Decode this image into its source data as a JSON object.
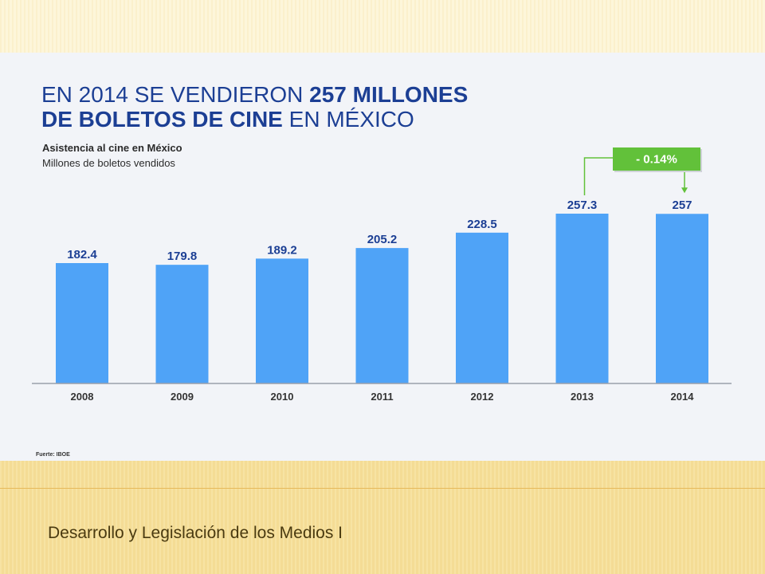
{
  "headline": {
    "line1_regular": "EN 2014 SE VENDIERON ",
    "line1_bold": "257 MILLONES",
    "line2_bold": "DE BOLETOS DE CINE",
    "line2_regular": " EN MÉXICO"
  },
  "subtitle": "Asistencia al cine en México",
  "unit_label": "Millones de boletos vendidos",
  "chart_data": {
    "type": "bar",
    "title": "",
    "xlabel": "",
    "ylabel": "",
    "categories": [
      "2008",
      "2009",
      "2010",
      "2011",
      "2012",
      "2013",
      "2014"
    ],
    "values": [
      182.4,
      179.8,
      189.2,
      205.2,
      228.5,
      257.3,
      257
    ],
    "data_labels": [
      "182.4",
      "179.8",
      "189.2",
      "205.2",
      "228.5",
      "257.3",
      "257"
    ],
    "bar_color": "#4fa3f7",
    "ylim": [
      0,
      257.3
    ],
    "grid": false,
    "legend": "none",
    "annotation": {
      "text": "- 0.14%",
      "from_category": "2013",
      "to_category": "2014",
      "color": "#62c13a"
    }
  },
  "source": "Fuerte: IBOE",
  "footer": "Desarrollo y Legislación de los Medios I",
  "colors": {
    "title_blue": "#1c3f94",
    "label_blue": "#1c3f94",
    "panel_bg": "#f2f4f8",
    "band_gold": "#f4dc95"
  }
}
